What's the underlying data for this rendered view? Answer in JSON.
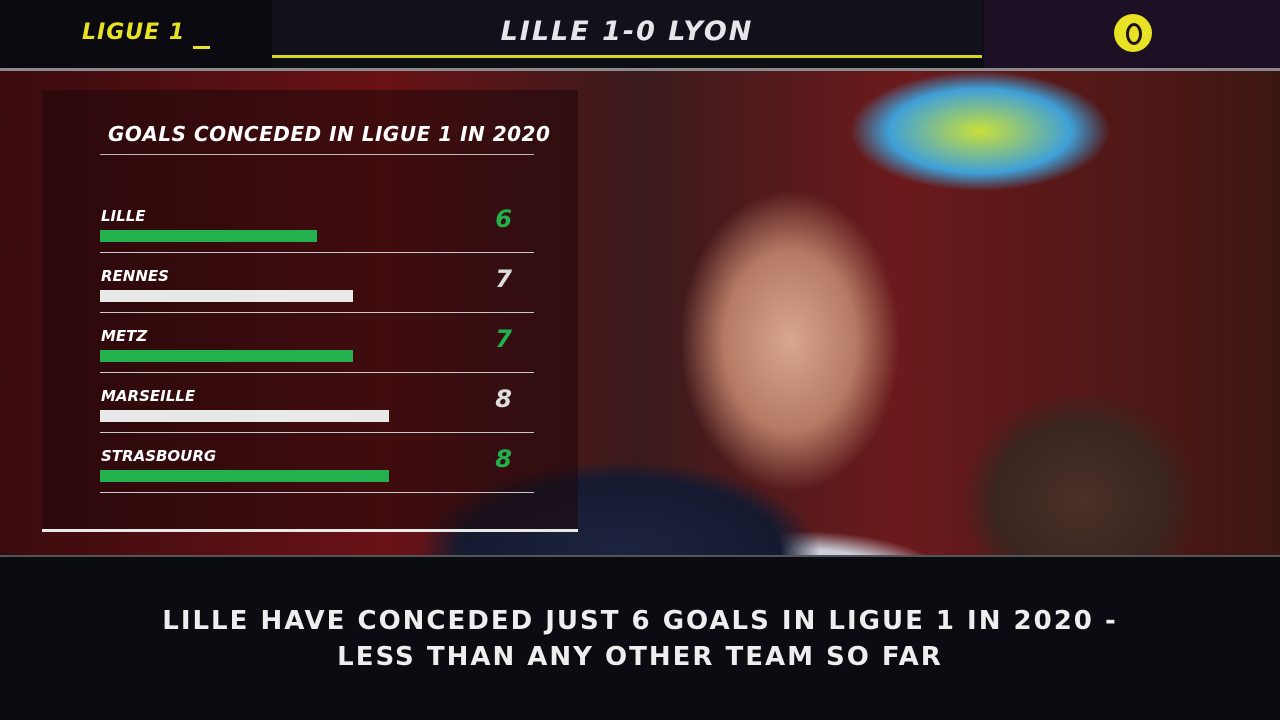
{
  "header": {
    "league": "LIGUE 1",
    "score": "LILLE 1-0 LYON",
    "logo": "ligue-1-logo"
  },
  "colors": {
    "highlight": "#22b14c",
    "neutral": "#e8e8e8",
    "accent": "#e8e224"
  },
  "chart_data": {
    "type": "bar",
    "orientation": "horizontal",
    "title": "GOALS CONCEDED IN LIGUE 1 IN 2020",
    "categories": [
      "LILLE",
      "RENNES",
      "METZ",
      "MARSEILLE",
      "STRASBOURG"
    ],
    "values": [
      6,
      7,
      7,
      8,
      8
    ],
    "labels": [
      "6",
      "7",
      "7",
      "8",
      "8"
    ],
    "highlighted": [
      true,
      false,
      true,
      false,
      true
    ],
    "grid": false
  },
  "caption": {
    "line1": "LILLE HAVE CONCEDED JUST 6 GOALS IN LIGUE 1 IN 2020 -",
    "line2": "LESS THAN ANY OTHER TEAM SO FAR"
  }
}
